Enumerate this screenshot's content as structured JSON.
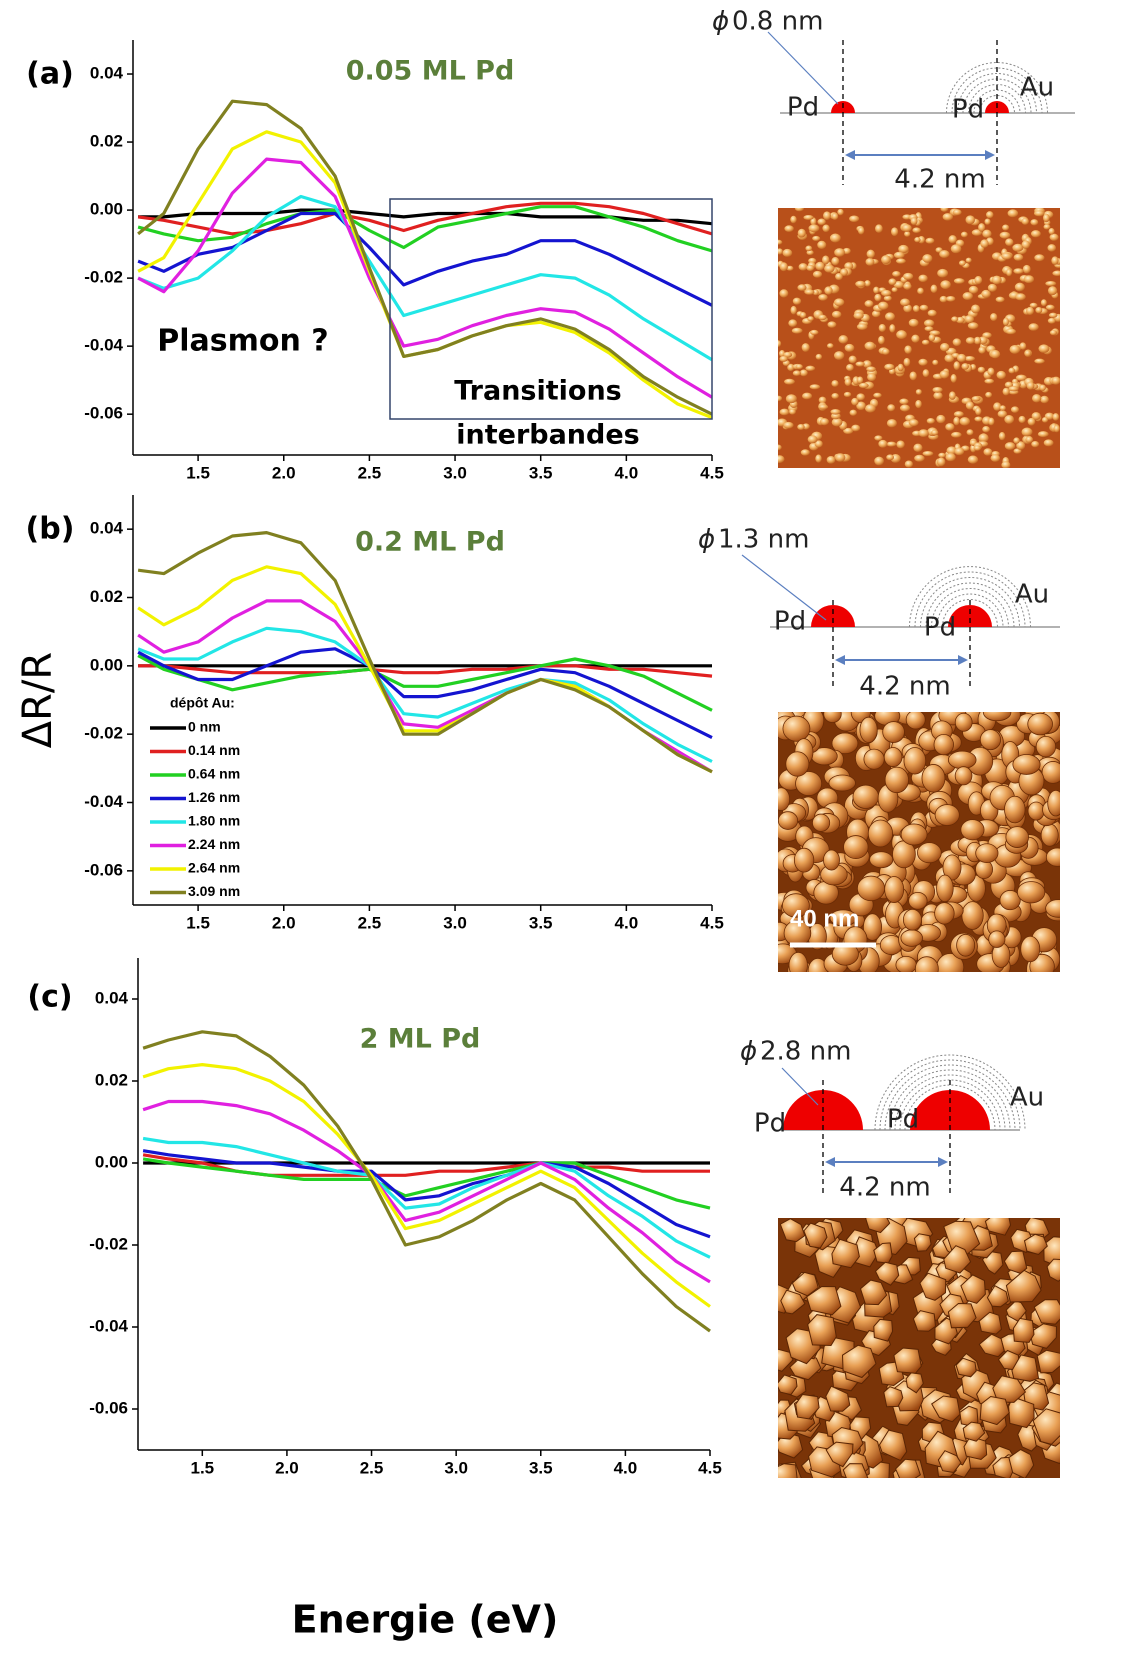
{
  "chart_data": [
    {
      "type": "line",
      "panel": "(a)",
      "title": "0.05 ML Pd",
      "annotations": [
        "Plasmon ?",
        "Transitions",
        "interbandes"
      ],
      "x": [
        1.15,
        1.3,
        1.5,
        1.7,
        1.9,
        2.1,
        2.3,
        2.5,
        2.7,
        2.9,
        3.1,
        3.3,
        3.5,
        3.7,
        3.9,
        4.1,
        4.3,
        4.5
      ],
      "xlim": [
        1.12,
        4.5
      ],
      "xticks": [
        1.5,
        {
          "value": 2,
          "label": "2.0"
        },
        2.5,
        {
          "value": 3,
          "label": "3.0"
        },
        3.5,
        {
          "value": 4,
          "label": "4.0"
        },
        4.5
      ],
      "ylim": [
        -0.072,
        0.05
      ],
      "yticks": [
        -0.06,
        -0.04,
        -0.02,
        {
          "value": 0,
          "label": "0.00"
        },
        0.02,
        0.04
      ],
      "series": [
        {
          "color": "#000000",
          "values": [
            -0.002,
            -0.002,
            -0.001,
            -0.001,
            -0.001,
            0,
            0,
            -0.001,
            -0.002,
            -0.001,
            -0.001,
            -0.001,
            -0.002,
            -0.002,
            -0.002,
            -0.003,
            -0.003,
            -0.004
          ]
        },
        {
          "color": "#e02020",
          "values": [
            -0.002,
            -0.003,
            -0.005,
            -0.007,
            -0.006,
            -0.004,
            -0.001,
            -0.003,
            -0.006,
            -0.003,
            -0.001,
            0.001,
            0.002,
            0.002,
            0.001,
            -0.001,
            -0.004,
            -0.007
          ]
        },
        {
          "color": "#22d022",
          "values": [
            -0.005,
            -0.007,
            -0.009,
            -0.008,
            -0.004,
            -0.001,
            0,
            -0.006,
            -0.011,
            -0.005,
            -0.003,
            -0.001,
            0.001,
            0.001,
            -0.002,
            -0.005,
            -0.009,
            -0.012
          ]
        },
        {
          "color": "#1414d0",
          "values": [
            -0.015,
            -0.018,
            -0.013,
            -0.011,
            -0.006,
            -0.001,
            -0.001,
            -0.011,
            -0.022,
            -0.018,
            -0.015,
            -0.013,
            -0.009,
            -0.009,
            -0.013,
            -0.018,
            -0.023,
            -0.028
          ]
        },
        {
          "color": "#22e6e6",
          "values": [
            -0.02,
            -0.023,
            -0.02,
            -0.012,
            -0.002,
            0.004,
            0.001,
            -0.015,
            -0.031,
            -0.028,
            -0.025,
            -0.022,
            -0.019,
            -0.02,
            -0.025,
            -0.032,
            -0.038,
            -0.044
          ]
        },
        {
          "color": "#e020e0",
          "values": [
            -0.02,
            -0.024,
            -0.012,
            0.005,
            0.015,
            0.014,
            0.004,
            -0.02,
            -0.04,
            -0.038,
            -0.034,
            -0.031,
            -0.029,
            -0.03,
            -0.035,
            -0.042,
            -0.049,
            -0.055
          ]
        },
        {
          "color": "#f2f200",
          "values": [
            -0.018,
            -0.014,
            0.002,
            0.018,
            0.023,
            0.02,
            0.008,
            -0.018,
            -0.043,
            -0.041,
            -0.037,
            -0.034,
            -0.033,
            -0.036,
            -0.042,
            -0.05,
            -0.057,
            -0.061
          ]
        },
        {
          "color": "#808020",
          "values": [
            -0.007,
            -0.001,
            0.018,
            0.032,
            0.031,
            0.024,
            0.01,
            -0.017,
            -0.043,
            -0.041,
            -0.037,
            -0.034,
            -0.032,
            -0.035,
            -0.041,
            -0.049,
            -0.055,
            -0.06
          ]
        }
      ]
    },
    {
      "type": "line",
      "panel": "(b)",
      "title": "0.2 ML Pd",
      "ylabel": "ΔR/R",
      "legend_title": "dépôt Au:",
      "x": [
        1.15,
        1.3,
        1.5,
        1.7,
        1.9,
        2.1,
        2.3,
        2.5,
        2.7,
        2.9,
        3.1,
        3.3,
        3.5,
        3.7,
        3.9,
        4.1,
        4.3,
        4.5
      ],
      "xlim": [
        1.12,
        4.5
      ],
      "xticks": [
        1.5,
        {
          "value": 2,
          "label": "2.0"
        },
        2.5,
        {
          "value": 3,
          "label": "3.0"
        },
        3.5,
        {
          "value": 4,
          "label": "4.0"
        },
        4.5
      ],
      "ylim": [
        -0.07,
        0.05
      ],
      "yticks": [
        -0.06,
        -0.04,
        -0.02,
        {
          "value": 0,
          "label": "0.00"
        },
        0.02,
        0.04
      ],
      "series": [
        {
          "name": "0 nm",
          "color": "#000000",
          "values": [
            0,
            0,
            0,
            0,
            0,
            0,
            0,
            0,
            0,
            0,
            0,
            0,
            0,
            0,
            0,
            0,
            0,
            0
          ]
        },
        {
          "name": "0.14 nm",
          "color": "#e02020",
          "values": [
            0,
            0,
            -0.001,
            -0.002,
            -0.002,
            -0.002,
            -0.002,
            -0.001,
            -0.002,
            -0.002,
            -0.001,
            -0.001,
            0,
            0,
            -0.001,
            -0.001,
            -0.002,
            -0.003
          ]
        },
        {
          "name": "0.64 nm",
          "color": "#22d022",
          "values": [
            0.003,
            -0.001,
            -0.004,
            -0.007,
            -0.005,
            -0.003,
            -0.002,
            -0.001,
            -0.006,
            -0.006,
            -0.004,
            -0.002,
            0,
            0.002,
            0,
            -0.003,
            -0.008,
            -0.013
          ]
        },
        {
          "name": "1.26 nm",
          "color": "#1414d0",
          "values": [
            0.004,
            0,
            -0.004,
            -0.004,
            0,
            0.004,
            0.005,
            0,
            -0.009,
            -0.009,
            -0.007,
            -0.004,
            -0.001,
            -0.002,
            -0.006,
            -0.011,
            -0.016,
            -0.021
          ]
        },
        {
          "name": "1.80 nm",
          "color": "#22e6e6",
          "values": [
            0.005,
            0.002,
            0.002,
            0.007,
            0.011,
            0.01,
            0.007,
            0,
            -0.014,
            -0.015,
            -0.011,
            -0.007,
            -0.004,
            -0.005,
            -0.01,
            -0.017,
            -0.023,
            -0.028
          ]
        },
        {
          "name": "2.24 nm",
          "color": "#e020e0",
          "values": [
            0.009,
            0.004,
            0.007,
            0.014,
            0.019,
            0.019,
            0.013,
            0,
            -0.017,
            -0.018,
            -0.013,
            -0.008,
            -0.004,
            -0.006,
            -0.012,
            -0.019,
            -0.025,
            -0.031
          ]
        },
        {
          "name": "2.64 nm",
          "color": "#f2f200",
          "values": [
            0.017,
            0.012,
            0.017,
            0.025,
            0.029,
            0.027,
            0.018,
            0,
            -0.019,
            -0.019,
            -0.014,
            -0.008,
            -0.004,
            -0.006,
            -0.012,
            -0.019,
            -0.026,
            -0.031
          ]
        },
        {
          "name": "3.09 nm",
          "color": "#808020",
          "values": [
            0.028,
            0.027,
            0.033,
            0.038,
            0.039,
            0.036,
            0.025,
            0.002,
            -0.02,
            -0.02,
            -0.014,
            -0.008,
            -0.004,
            -0.007,
            -0.012,
            -0.019,
            -0.026,
            -0.031
          ]
        }
      ]
    },
    {
      "type": "line",
      "panel": "(c)",
      "title": "2  ML Pd",
      "xlabel": "Energie (eV)",
      "x": [
        1.15,
        1.3,
        1.5,
        1.7,
        1.9,
        2.1,
        2.3,
        2.5,
        2.7,
        2.9,
        3.1,
        3.3,
        3.5,
        3.7,
        3.9,
        4.1,
        4.3,
        4.5
      ],
      "xlim": [
        1.12,
        4.5
      ],
      "xticks": [
        1.5,
        {
          "value": 2,
          "label": "2.0"
        },
        2.5,
        {
          "value": 3,
          "label": "3.0"
        },
        3.5,
        {
          "value": 4,
          "label": "4.0"
        },
        4.5
      ],
      "ylim": [
        -0.07,
        0.05
      ],
      "yticks": [
        -0.06,
        -0.04,
        -0.02,
        {
          "value": 0,
          "label": "0.00"
        },
        0.02,
        0.04
      ],
      "series": [
        {
          "color": "#000000",
          "values": [
            0,
            0,
            0,
            0,
            0,
            0,
            0,
            0,
            0,
            0,
            0,
            0,
            0,
            0,
            0,
            0,
            0,
            0
          ]
        },
        {
          "color": "#e02020",
          "values": [
            0.002,
            0.001,
            0,
            -0.002,
            -0.003,
            -0.003,
            -0.003,
            -0.003,
            -0.003,
            -0.002,
            -0.002,
            -0.001,
            0,
            -0.001,
            -0.001,
            -0.002,
            -0.002,
            -0.002
          ]
        },
        {
          "color": "#22d022",
          "values": [
            0.001,
            0,
            -0.001,
            -0.002,
            -0.003,
            -0.004,
            -0.004,
            -0.004,
            -0.008,
            -0.006,
            -0.004,
            -0.002,
            0,
            0,
            -0.003,
            -0.006,
            -0.009,
            -0.011
          ]
        },
        {
          "color": "#1414d0",
          "values": [
            0.003,
            0.002,
            0.001,
            0,
            0,
            -0.001,
            -0.002,
            -0.002,
            -0.009,
            -0.008,
            -0.005,
            -0.003,
            0,
            -0.001,
            -0.005,
            -0.01,
            -0.015,
            -0.018
          ]
        },
        {
          "color": "#22e6e6",
          "values": [
            0.006,
            0.005,
            0.005,
            0.004,
            0.002,
            0,
            -0.002,
            -0.003,
            -0.011,
            -0.01,
            -0.006,
            -0.003,
            0,
            -0.002,
            -0.008,
            -0.013,
            -0.019,
            -0.023
          ]
        },
        {
          "color": "#e020e0",
          "values": [
            0.013,
            0.015,
            0.015,
            0.014,
            0.012,
            0.008,
            0.003,
            -0.003,
            -0.014,
            -0.012,
            -0.008,
            -0.004,
            0,
            -0.004,
            -0.011,
            -0.017,
            -0.024,
            -0.029
          ]
        },
        {
          "color": "#f2f200",
          "values": [
            0.021,
            0.023,
            0.024,
            0.023,
            0.02,
            0.015,
            0.007,
            -0.003,
            -0.016,
            -0.014,
            -0.01,
            -0.006,
            -0.002,
            -0.006,
            -0.014,
            -0.022,
            -0.029,
            -0.035
          ]
        },
        {
          "color": "#808020",
          "values": [
            0.028,
            0.03,
            0.032,
            0.031,
            0.026,
            0.019,
            0.009,
            -0.004,
            -0.02,
            -0.018,
            -0.014,
            -0.009,
            -0.005,
            -0.009,
            -0.018,
            -0.027,
            -0.035,
            -0.041
          ]
        }
      ]
    }
  ],
  "diagrams": [
    {
      "diameter_symbol": "ϕ",
      "diameter": "0.8 nm",
      "labels": [
        "Pd",
        "Pd",
        "Au"
      ],
      "spacing": "4.2 nm"
    },
    {
      "diameter_symbol": "ϕ",
      "diameter": "1.3 nm",
      "labels": [
        "Pd",
        "Pd",
        "Au"
      ],
      "spacing": "4.2 nm",
      "scale_bar": "40 nm"
    },
    {
      "diameter_symbol": "ϕ",
      "diameter": "2.8 nm",
      "labels": [
        "Pd",
        "Pd",
        "Au"
      ],
      "spacing": "4.2 nm"
    }
  ]
}
